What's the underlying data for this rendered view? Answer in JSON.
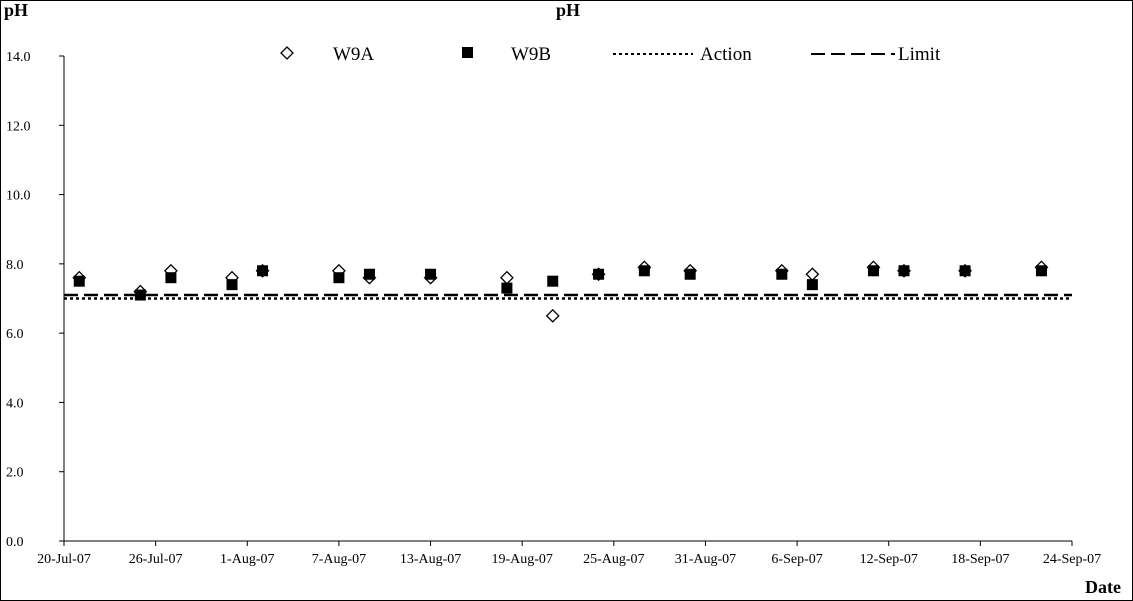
{
  "chart_data": {
    "type": "scatter",
    "title": "pH",
    "ylabel": "pH",
    "xlabel": "Date",
    "ylim": [
      0,
      14
    ],
    "yticks": [
      "0.0",
      "2.0",
      "4.0",
      "6.0",
      "8.0",
      "10.0",
      "12.0",
      "14.0"
    ],
    "xlim": [
      "2007-07-20",
      "2007-09-24"
    ],
    "xticks": [
      "20-Jul-07",
      "26-Jul-07",
      "1-Aug-07",
      "7-Aug-07",
      "13-Aug-07",
      "19-Aug-07",
      "25-Aug-07",
      "31-Aug-07",
      "6-Sep-07",
      "12-Sep-07",
      "18-Sep-07",
      "24-Sep-07"
    ],
    "grid": false,
    "legend_position": "top",
    "series": [
      {
        "name": "W9A",
        "marker": "diamond-open",
        "color": "#000000",
        "points": [
          {
            "x": "2007-07-21",
            "y": 7.6
          },
          {
            "x": "2007-07-25",
            "y": 7.2
          },
          {
            "x": "2007-07-27",
            "y": 7.8
          },
          {
            "x": "2007-07-31",
            "y": 7.6
          },
          {
            "x": "2007-08-02",
            "y": 7.8
          },
          {
            "x": "2007-08-07",
            "y": 7.8
          },
          {
            "x": "2007-08-09",
            "y": 7.6
          },
          {
            "x": "2007-08-13",
            "y": 7.6
          },
          {
            "x": "2007-08-18",
            "y": 7.6
          },
          {
            "x": "2007-08-21",
            "y": 6.5
          },
          {
            "x": "2007-08-24",
            "y": 7.7
          },
          {
            "x": "2007-08-27",
            "y": 7.9
          },
          {
            "x": "2007-08-30",
            "y": 7.8
          },
          {
            "x": "2007-09-05",
            "y": 7.8
          },
          {
            "x": "2007-09-07",
            "y": 7.7
          },
          {
            "x": "2007-09-11",
            "y": 7.9
          },
          {
            "x": "2007-09-13",
            "y": 7.8
          },
          {
            "x": "2007-09-17",
            "y": 7.8
          },
          {
            "x": "2007-09-22",
            "y": 7.9
          }
        ]
      },
      {
        "name": "W9B",
        "marker": "square-filled",
        "color": "#000000",
        "points": [
          {
            "x": "2007-07-21",
            "y": 7.5
          },
          {
            "x": "2007-07-25",
            "y": 7.1
          },
          {
            "x": "2007-07-27",
            "y": 7.6
          },
          {
            "x": "2007-07-31",
            "y": 7.4
          },
          {
            "x": "2007-08-02",
            "y": 7.8
          },
          {
            "x": "2007-08-07",
            "y": 7.6
          },
          {
            "x": "2007-08-09",
            "y": 7.7
          },
          {
            "x": "2007-08-13",
            "y": 7.7
          },
          {
            "x": "2007-08-18",
            "y": 7.3
          },
          {
            "x": "2007-08-21",
            "y": 7.5
          },
          {
            "x": "2007-08-24",
            "y": 7.7
          },
          {
            "x": "2007-08-27",
            "y": 7.8
          },
          {
            "x": "2007-08-30",
            "y": 7.7
          },
          {
            "x": "2007-09-05",
            "y": 7.7
          },
          {
            "x": "2007-09-07",
            "y": 7.4
          },
          {
            "x": "2007-09-11",
            "y": 7.8
          },
          {
            "x": "2007-09-13",
            "y": 7.8
          },
          {
            "x": "2007-09-17",
            "y": 7.8
          },
          {
            "x": "2007-09-22",
            "y": 7.8
          }
        ]
      }
    ],
    "reference_lines": [
      {
        "name": "Action",
        "style": "dotted",
        "y": 7.0,
        "color": "#000000"
      },
      {
        "name": "Limit",
        "style": "dashed",
        "y": 7.1,
        "color": "#000000"
      }
    ]
  }
}
